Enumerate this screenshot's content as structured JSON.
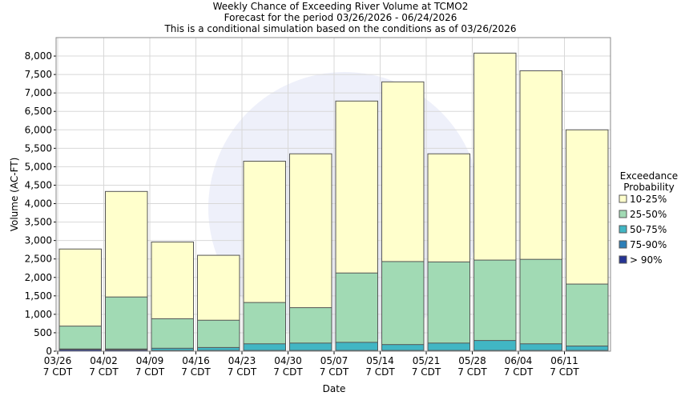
{
  "chart_data": {
    "type": "bar",
    "title": "Weekly Chance of Exceeding River Volume at TCMO2",
    "subtitle": [
      "Forecast for the period 03/26/2026 - 06/24/2026",
      "This is a conditional simulation based on the conditions as of 03/26/2026"
    ],
    "x_label": "Date",
    "y_label": "Volume (AC-FT)",
    "legend_title": [
      "Exceedance",
      "Probability"
    ],
    "categories": [
      "03/26\n7 CDT",
      "04/02\n7 CDT",
      "04/09\n7 CDT",
      "04/16\n7 CDT",
      "04/23\n7 CDT",
      "04/30\n7 CDT",
      "05/07\n7 CDT",
      "05/14\n7 CDT",
      "05/21\n7 CDT",
      "05/28\n7 CDT",
      "06/04\n7 CDT",
      "06/11\n7 CDT"
    ],
    "series": [
      {
        "name": "10-25%",
        "color": "#ffffcc",
        "values": [
          2770,
          4330,
          2960,
          2600,
          5150,
          5350,
          6780,
          7300,
          5350,
          8080,
          7600,
          6000
        ]
      },
      {
        "name": "25-50%",
        "color": "#a1dab4",
        "values": [
          680,
          1470,
          880,
          840,
          1320,
          1180,
          2120,
          2430,
          2420,
          2470,
          2490,
          1820
        ]
      },
      {
        "name": "50-75%",
        "color": "#41b6c4",
        "values": [
          60,
          60,
          80,
          100,
          200,
          220,
          240,
          180,
          220,
          290,
          200,
          140
        ]
      },
      {
        "name": "75-90%",
        "color": "#2c7fb8",
        "values": [
          55,
          40,
          20,
          20,
          20,
          20,
          20,
          20,
          20,
          20,
          20,
          20
        ]
      },
      {
        "name": "> 90%",
        "color": "#253494",
        "values": [
          40,
          30,
          10,
          10,
          10,
          10,
          10,
          10,
          10,
          10,
          10,
          10
        ]
      }
    ],
    "ylim": [
      0,
      8500
    ],
    "yticks": [
      0,
      500,
      {
        "value": 1000,
        "label": "1,000"
      },
      {
        "value": 1500,
        "label": "1,500"
      },
      {
        "value": 2000,
        "label": "2,000"
      },
      {
        "value": 2500,
        "label": "2,500"
      },
      {
        "value": 3000,
        "label": "3,000"
      },
      {
        "value": 3500,
        "label": "3,500"
      },
      {
        "value": 4000,
        "label": "4,000"
      },
      {
        "value": 4500,
        "label": "4,500"
      },
      {
        "value": 5000,
        "label": "5,000"
      },
      {
        "value": 5500,
        "label": "5,500"
      },
      {
        "value": 6000,
        "label": "6,000"
      },
      {
        "value": 6500,
        "label": "6,500"
      },
      {
        "value": 7000,
        "label": "7,000"
      },
      {
        "value": 7500,
        "label": "7,500"
      },
      {
        "value": 8000,
        "label": "8,000"
      }
    ],
    "grid": true
  }
}
